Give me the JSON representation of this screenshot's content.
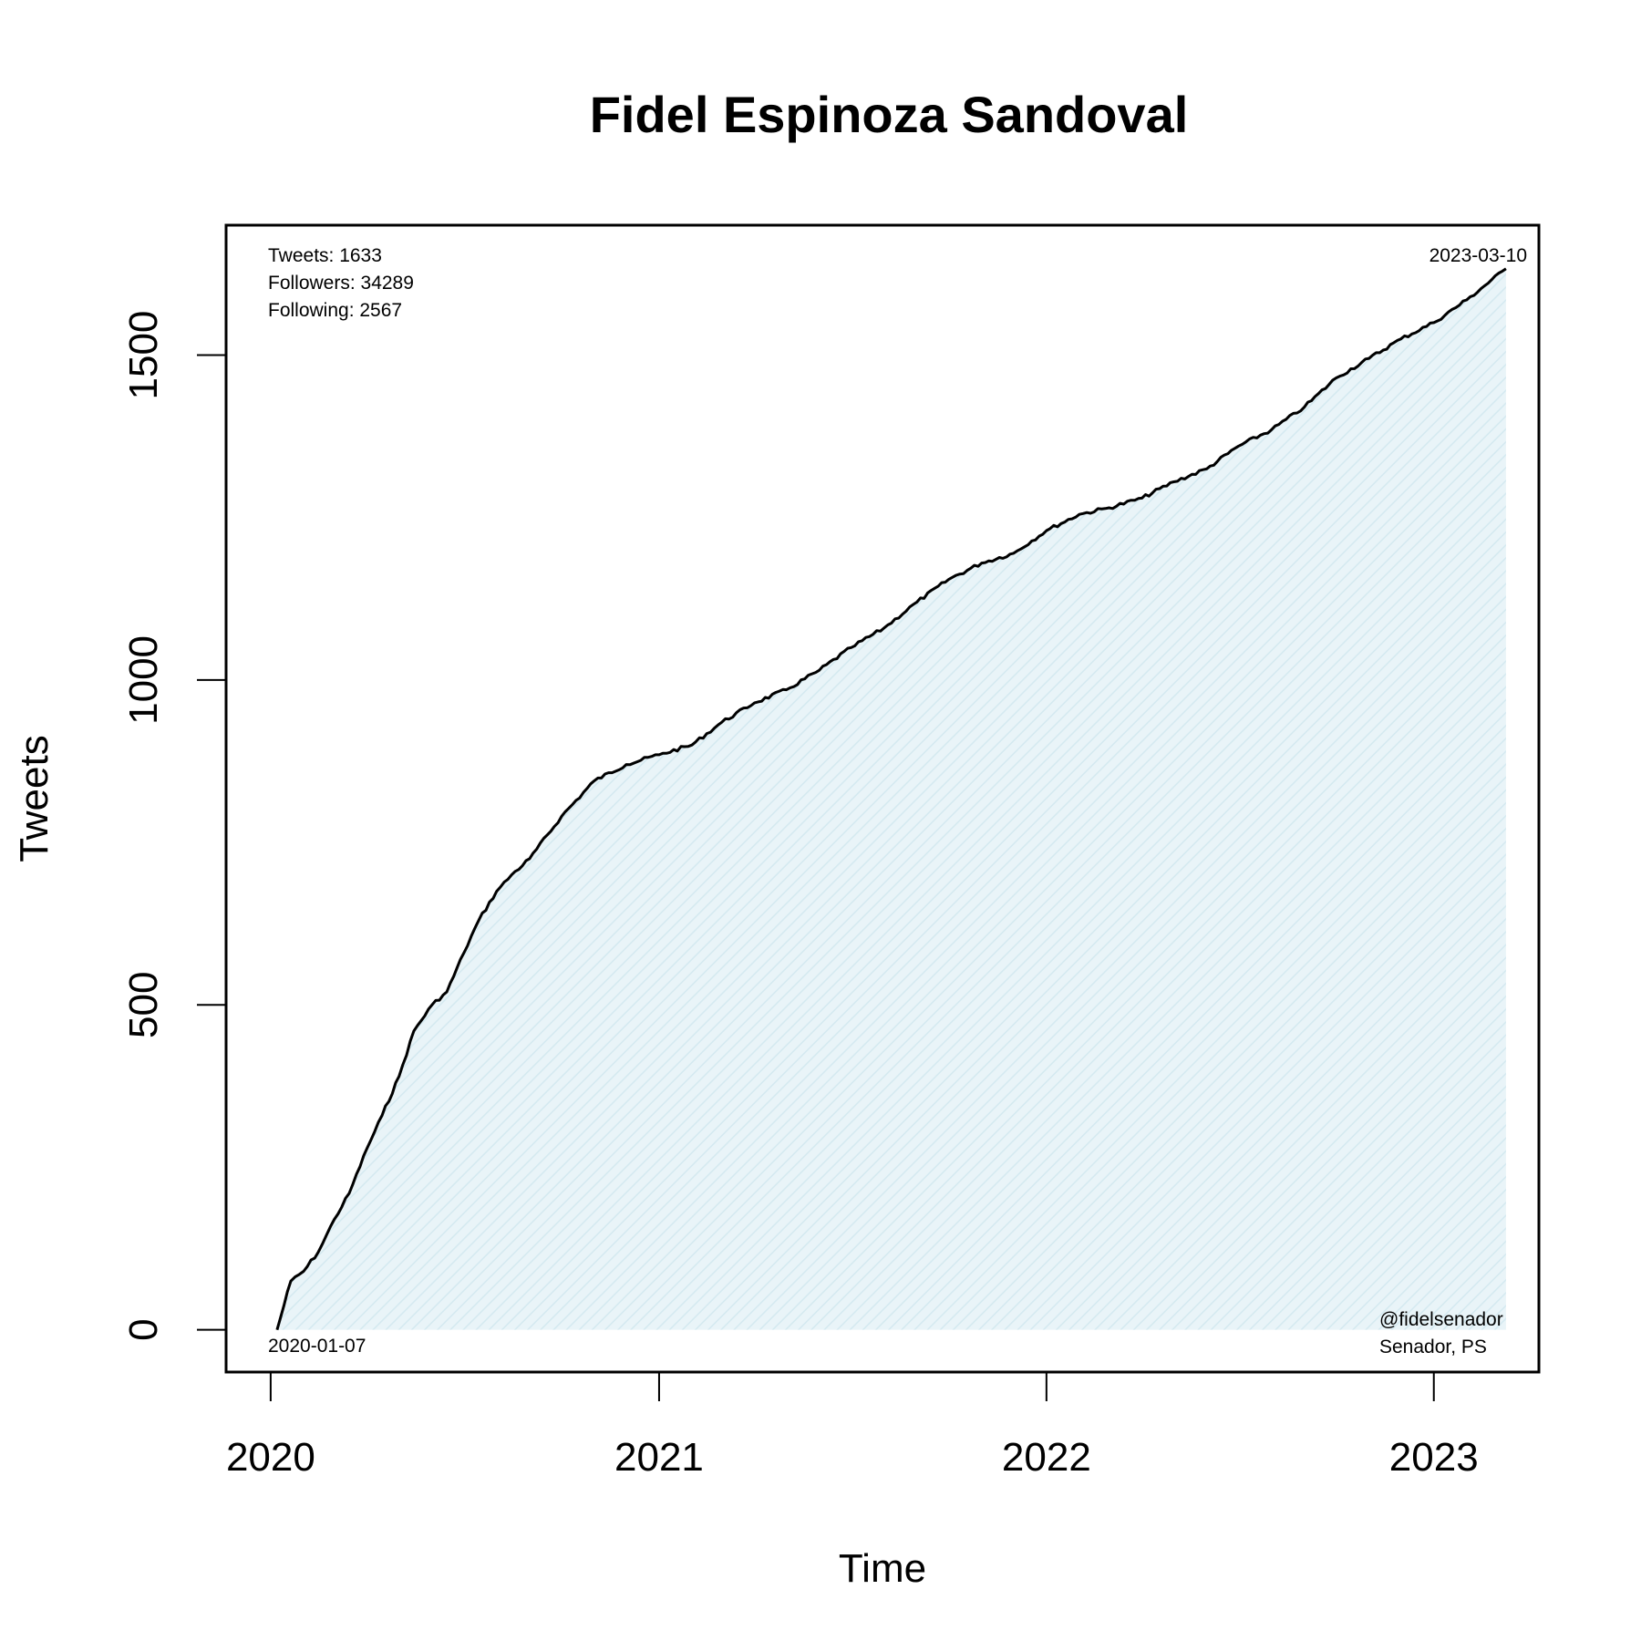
{
  "chart_data": {
    "type": "area",
    "title": "Fidel Espinoza Sandoval",
    "xlabel": "Time",
    "ylabel": "Tweets",
    "x_ticks": [
      "2020",
      "2021",
      "2022",
      "2023"
    ],
    "y_ticks": [
      "0",
      "500",
      "1000",
      "1500"
    ],
    "ylim": [
      -65,
      1700
    ],
    "xlim": [
      "2019-11-20",
      "2023-04-10"
    ],
    "start_date": "2020-01-07",
    "end_date": "2023-03-10",
    "line_color": "#000000",
    "fill_color": "#d6ecf2",
    "annotations": {
      "tweets": "Tweets: 1633",
      "followers": "Followers: 34289",
      "following": "Following: 2567",
      "handle": "@fidelsenador",
      "role": "Senador, PS"
    },
    "series": [
      {
        "x": [
          "2020-01-07",
          "2020-01-20",
          "2020-02-01",
          "2020-02-15",
          "2020-03-01",
          "2020-03-15",
          "2020-04-01",
          "2020-04-15",
          "2020-05-01",
          "2020-05-15",
          "2020-06-01",
          "2020-06-15",
          "2020-07-01",
          "2020-07-15",
          "2020-08-01",
          "2020-08-15",
          "2020-09-01",
          "2020-10-01",
          "2020-11-01",
          "2020-12-01",
          "2021-01-01",
          "2021-02-01",
          "2021-03-01",
          "2021-04-01",
          "2021-05-01",
          "2021-06-01",
          "2021-07-01",
          "2021-08-01",
          "2021-09-01",
          "2021-10-01",
          "2021-11-01",
          "2021-12-01",
          "2022-01-01",
          "2022-02-01",
          "2022-03-01",
          "2022-04-01",
          "2022-05-01",
          "2022-06-01",
          "2022-07-01",
          "2022-08-01",
          "2022-09-01",
          "2022-10-01",
          "2022-11-01",
          "2022-12-01",
          "2023-01-01",
          "2023-02-01",
          "2023-03-10"
        ],
        "y": [
          0,
          75,
          90,
          120,
          170,
          210,
          280,
          330,
          390,
          460,
          500,
          520,
          580,
          630,
          675,
          700,
          725,
          790,
          845,
          870,
          885,
          900,
          935,
          965,
          985,
          1015,
          1050,
          1080,
          1120,
          1155,
          1180,
          1195,
          1230,
          1255,
          1265,
          1280,
          1305,
          1325,
          1360,
          1385,
          1420,
          1465,
          1495,
          1525,
          1550,
          1585,
          1633
        ]
      }
    ]
  }
}
